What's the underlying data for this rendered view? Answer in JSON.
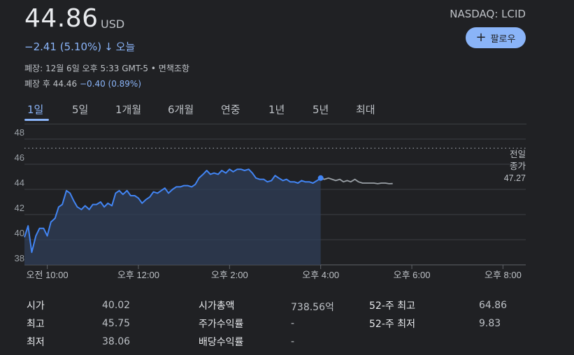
{
  "quote": {
    "price": "44.86",
    "currency": "USD",
    "exchange_ticker": "NASDAQ: LCID",
    "follow_label": "팔로우",
    "change": "−2.41 (5.10%)",
    "change_arrow": "↓",
    "change_period": "오늘",
    "close_info": "폐장: 12월 6일 오후 5:33 GMT-5",
    "separator": "•",
    "disclaimer": "면책조항",
    "after_hours_label": "폐장 후 44.46",
    "after_hours_change": "−0.40 (0.89%)"
  },
  "tabs": [
    "1일",
    "5일",
    "1개월",
    "6개월",
    "연중",
    "1년",
    "5년",
    "최대"
  ],
  "active_tab": "1일",
  "chart_data": {
    "type": "line",
    "y_ticks": [
      "48",
      "46",
      "44",
      "42",
      "40",
      "38"
    ],
    "ylim": [
      38,
      48
    ],
    "x_ticks": [
      "오전 10:00",
      "오후 12:00",
      "오후 2:00",
      "오후 4:00",
      "오후 6:00",
      "오후 8:00"
    ],
    "x_tick_hours": [
      10,
      12,
      14,
      16,
      18,
      20
    ],
    "xlim": [
      9.5,
      20.5
    ],
    "prev_close": 47.27,
    "prev_close_label": [
      "전일",
      "종가",
      "47.27"
    ],
    "colors": {
      "regular": "#4285f4",
      "after_hours": "#9aa0a6",
      "fill": "#2f3d57"
    },
    "series": [
      {
        "segment": "regular",
        "x": [
          9.5,
          9.58,
          9.66,
          9.75,
          9.83,
          9.92,
          10.0,
          10.08,
          10.17,
          10.25,
          10.33,
          10.42,
          10.5,
          10.58,
          10.66,
          10.75,
          10.83,
          10.92,
          11.0,
          11.08,
          11.17,
          11.25,
          11.33,
          11.42,
          11.5,
          11.58,
          11.66,
          11.75,
          11.83,
          11.92,
          12.0,
          12.08,
          12.17,
          12.25,
          12.33,
          12.42,
          12.5,
          12.58,
          12.66,
          12.75,
          12.83,
          12.92,
          13.0,
          13.08,
          13.17,
          13.25,
          13.33,
          13.42,
          13.5,
          13.58,
          13.66,
          13.75,
          13.83,
          13.92,
          14.0,
          14.08,
          14.17,
          14.25,
          14.33,
          14.42,
          14.5,
          14.58,
          14.66,
          14.75,
          14.83,
          14.92,
          15.0,
          15.08,
          15.17,
          15.25,
          15.33,
          15.42,
          15.5,
          15.58,
          15.66,
          15.75,
          15.83,
          15.92,
          16.0
        ],
        "y": [
          40.2,
          41.1,
          39.0,
          40.3,
          40.9,
          40.9,
          40.3,
          41.4,
          41.7,
          42.6,
          42.8,
          43.9,
          43.7,
          43.1,
          42.6,
          42.4,
          42.7,
          42.4,
          42.8,
          42.8,
          43.0,
          42.6,
          42.9,
          42.7,
          43.7,
          43.9,
          43.6,
          43.9,
          43.5,
          43.5,
          43.3,
          42.9,
          43.2,
          43.4,
          43.8,
          43.7,
          43.9,
          44.1,
          43.7,
          44.0,
          44.2,
          44.2,
          44.3,
          44.3,
          44.2,
          44.4,
          44.9,
          45.2,
          45.5,
          45.2,
          45.3,
          45.2,
          45.5,
          45.3,
          45.6,
          45.4,
          45.6,
          45.6,
          45.5,
          45.6,
          45.3,
          44.9,
          44.8,
          44.8,
          44.6,
          44.7,
          45.1,
          44.9,
          44.7,
          44.8,
          44.6,
          44.6,
          44.5,
          44.7,
          44.6,
          44.6,
          44.5,
          44.7,
          44.9
        ]
      },
      {
        "segment": "after_hours",
        "x": [
          16.0,
          16.08,
          16.17,
          16.25,
          16.33,
          16.42,
          16.5,
          16.58,
          16.66,
          16.75,
          16.83,
          16.92,
          17.0,
          17.08,
          17.17,
          17.25,
          17.33,
          17.42,
          17.5,
          17.58
        ],
        "y": [
          44.9,
          44.8,
          44.9,
          44.8,
          44.7,
          44.8,
          44.6,
          44.7,
          44.6,
          44.8,
          44.6,
          44.5,
          44.5,
          44.5,
          44.5,
          44.45,
          44.5,
          44.5,
          44.45,
          44.46
        ]
      }
    ]
  },
  "stats": {
    "col1": [
      {
        "label": "시가",
        "value": "40.02"
      },
      {
        "label": "최고",
        "value": "45.75"
      },
      {
        "label": "최저",
        "value": "38.06"
      }
    ],
    "col2": [
      {
        "label": "시가총액",
        "value": "738.56억"
      },
      {
        "label": "주가수익률",
        "value": "-"
      },
      {
        "label": "배당수익률",
        "value": "-"
      }
    ],
    "col3": [
      {
        "label": "52-주 최고",
        "value": "64.86"
      },
      {
        "label": "52-주 최저",
        "value": "9.83"
      }
    ]
  }
}
